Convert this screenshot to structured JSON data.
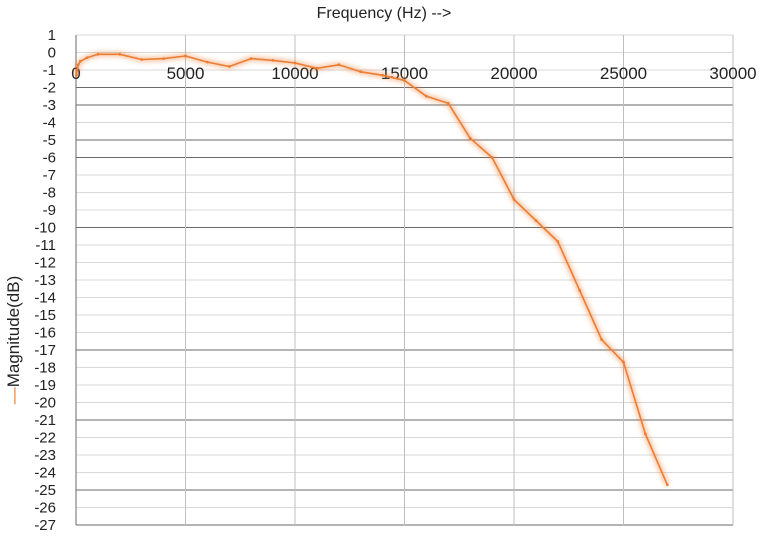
{
  "chart_data": {
    "type": "line",
    "title": "",
    "xlabel": "Frequency (Hz) -->",
    "ylabel": "Magnitude(dB)",
    "legend_marker": "—",
    "xlim": [
      0,
      30000
    ],
    "ylim": [
      -27,
      1
    ],
    "x_ticks": [
      "0",
      "5000",
      "10000",
      "15000",
      "20000",
      "25000",
      "30000"
    ],
    "y_ticks": [
      "1",
      "0",
      "-1",
      "-2",
      "-3",
      "-4",
      "-5",
      "-6",
      "-7",
      "-8",
      "-9",
      "-10",
      "-11",
      "-12",
      "-13",
      "-14",
      "-15",
      "-16",
      "-17",
      "-18",
      "-19",
      "-20",
      "-21",
      "-22",
      "-23",
      "-24",
      "-25",
      "-26",
      "-27"
    ],
    "grid": "both",
    "series": [
      {
        "name": "Magnitude(dB)",
        "color": "#ED7D31",
        "x": [
          20,
          50,
          100,
          200,
          500,
          1000,
          2000,
          3000,
          4000,
          5000,
          6000,
          7000,
          8000,
          9000,
          10000,
          11000,
          12000,
          13000,
          14000,
          15000,
          16000,
          17000,
          18000,
          19000,
          20000,
          21000,
          22000,
          23000,
          24000,
          25000,
          26000,
          27000
        ],
        "y": [
          -1.3,
          -1.0,
          -0.7,
          -0.5,
          -0.3,
          -0.1,
          -0.1,
          -0.4,
          -0.35,
          -0.2,
          -0.55,
          -0.8,
          -0.35,
          -0.45,
          -0.6,
          -0.9,
          -0.7,
          -1.1,
          -1.3,
          -1.6,
          -2.5,
          -2.9,
          -4.9,
          -6.0,
          -8.4,
          -9.6,
          -10.8,
          -13.6,
          -16.4,
          -17.7,
          -21.8,
          -24.7
        ]
      }
    ]
  }
}
